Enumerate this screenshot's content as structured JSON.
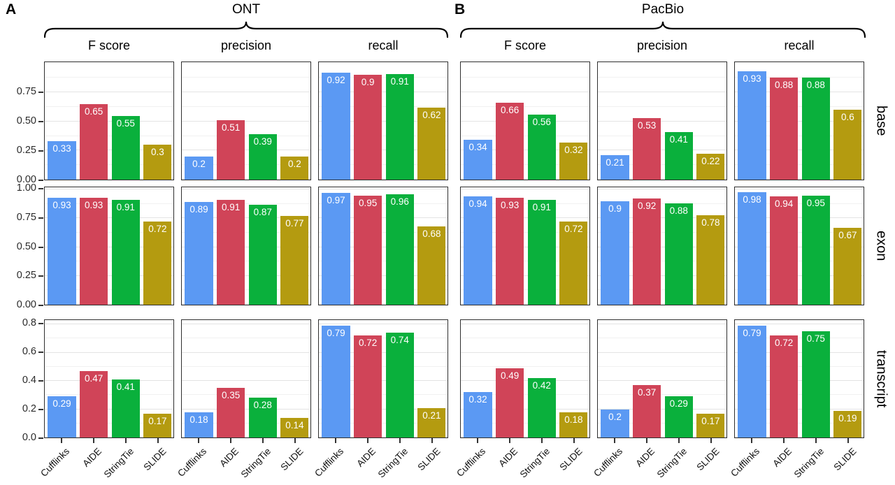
{
  "chart_data": {
    "type": "bar",
    "description": "Faceted grouped bar chart comparing transcript assembly tools",
    "categories": [
      "Cufflinks",
      "AIDE",
      "StringTie",
      "SLIDE"
    ],
    "bar_colors": [
      "#5B99F3",
      "#D04458",
      "#0AB03C",
      "#B49B10"
    ],
    "legend_position": "none",
    "grid": "on",
    "groups": [
      {
        "letter": "A",
        "title": "ONT"
      },
      {
        "letter": "B",
        "title": "PacBio"
      }
    ],
    "metrics": [
      "F score",
      "precision",
      "recall"
    ],
    "rows": [
      {
        "label": "base",
        "ymax": 1.01,
        "minors": [
          0.125,
          0.375,
          0.625,
          0.875
        ],
        "ticks": [
          {
            "v": 0,
            "label": "0.00"
          },
          {
            "v": 0.25,
            "label": "0.25"
          },
          {
            "v": 0.5,
            "label": "0.50"
          },
          {
            "v": 0.75,
            "label": "0.75"
          }
        ]
      },
      {
        "label": "exon",
        "ymax": 1.02,
        "minors": [
          0.125,
          0.375,
          0.625,
          0.875
        ],
        "ticks": [
          {
            "v": 0,
            "label": "0.00"
          },
          {
            "v": 0.25,
            "label": "0.25"
          },
          {
            "v": 0.5,
            "label": "0.50"
          },
          {
            "v": 0.75,
            "label": "0.75"
          },
          {
            "v": 1.0,
            "label": "1.00"
          }
        ]
      },
      {
        "label": "transcript",
        "ymax": 0.83,
        "minors": [
          0.1,
          0.3,
          0.5,
          0.7
        ],
        "ticks": [
          {
            "v": 0,
            "label": "0.0"
          },
          {
            "v": 0.2,
            "label": "0.2"
          },
          {
            "v": 0.4,
            "label": "0.4"
          },
          {
            "v": 0.6,
            "label": "0.6"
          },
          {
            "v": 0.8,
            "label": "0.8"
          }
        ]
      }
    ],
    "panels": [
      {
        "group": "ONT",
        "row": "base",
        "metric": "F score",
        "values": [
          0.33,
          0.65,
          0.55,
          0.3
        ],
        "labels": [
          "0.33",
          "0.65",
          "0.55",
          "0.3"
        ]
      },
      {
        "group": "ONT",
        "row": "base",
        "metric": "precision",
        "values": [
          0.2,
          0.51,
          0.39,
          0.2
        ],
        "labels": [
          "0.2",
          "0.51",
          "0.39",
          "0.2"
        ]
      },
      {
        "group": "ONT",
        "row": "base",
        "metric": "recall",
        "values": [
          0.92,
          0.9,
          0.91,
          0.62
        ],
        "labels": [
          "0.92",
          "0.9",
          "0.91",
          "0.62"
        ]
      },
      {
        "group": "ONT",
        "row": "exon",
        "metric": "F score",
        "values": [
          0.93,
          0.93,
          0.91,
          0.72
        ],
        "labels": [
          "0.93",
          "0.93",
          "0.91",
          "0.72"
        ]
      },
      {
        "group": "ONT",
        "row": "exon",
        "metric": "precision",
        "values": [
          0.89,
          0.91,
          0.87,
          0.77
        ],
        "labels": [
          "0.89",
          "0.91",
          "0.87",
          "0.77"
        ]
      },
      {
        "group": "ONT",
        "row": "exon",
        "metric": "recall",
        "values": [
          0.97,
          0.95,
          0.96,
          0.68
        ],
        "labels": [
          "0.97",
          "0.95",
          "0.96",
          "0.68"
        ]
      },
      {
        "group": "ONT",
        "row": "transcript",
        "metric": "F score",
        "values": [
          0.29,
          0.47,
          0.41,
          0.17
        ],
        "labels": [
          "0.29",
          "0.47",
          "0.41",
          "0.17"
        ]
      },
      {
        "group": "ONT",
        "row": "transcript",
        "metric": "precision",
        "values": [
          0.18,
          0.35,
          0.28,
          0.14
        ],
        "labels": [
          "0.18",
          "0.35",
          "0.28",
          "0.14"
        ]
      },
      {
        "group": "ONT",
        "row": "transcript",
        "metric": "recall",
        "values": [
          0.79,
          0.72,
          0.74,
          0.21
        ],
        "labels": [
          "0.79",
          "0.72",
          "0.74",
          "0.21"
        ]
      },
      {
        "group": "PacBio",
        "row": "base",
        "metric": "F score",
        "values": [
          0.34,
          0.66,
          0.56,
          0.32
        ],
        "labels": [
          "0.34",
          "0.66",
          "0.56",
          "0.32"
        ]
      },
      {
        "group": "PacBio",
        "row": "base",
        "metric": "precision",
        "values": [
          0.21,
          0.53,
          0.41,
          0.22
        ],
        "labels": [
          "0.21",
          "0.53",
          "0.41",
          "0.22"
        ]
      },
      {
        "group": "PacBio",
        "row": "base",
        "metric": "recall",
        "values": [
          0.93,
          0.88,
          0.88,
          0.6
        ],
        "labels": [
          "0.93",
          "0.88",
          "0.88",
          "0.6"
        ]
      },
      {
        "group": "PacBio",
        "row": "exon",
        "metric": "F score",
        "values": [
          0.94,
          0.93,
          0.91,
          0.72
        ],
        "labels": [
          "0.94",
          "0.93",
          "0.91",
          "0.72"
        ]
      },
      {
        "group": "PacBio",
        "row": "exon",
        "metric": "precision",
        "values": [
          0.9,
          0.92,
          0.88,
          0.78
        ],
        "labels": [
          "0.9",
          "0.92",
          "0.88",
          "0.78"
        ]
      },
      {
        "group": "PacBio",
        "row": "exon",
        "metric": "recall",
        "values": [
          0.98,
          0.94,
          0.95,
          0.67
        ],
        "labels": [
          "0.98",
          "0.94",
          "0.95",
          "0.67"
        ]
      },
      {
        "group": "PacBio",
        "row": "transcript",
        "metric": "F score",
        "values": [
          0.32,
          0.49,
          0.42,
          0.18
        ],
        "labels": [
          "0.32",
          "0.49",
          "0.42",
          "0.18"
        ]
      },
      {
        "group": "PacBio",
        "row": "transcript",
        "metric": "precision",
        "values": [
          0.2,
          0.37,
          0.29,
          0.17
        ],
        "labels": [
          "0.2",
          "0.37",
          "0.29",
          "0.17"
        ]
      },
      {
        "group": "PacBio",
        "row": "transcript",
        "metric": "recall",
        "values": [
          0.79,
          0.72,
          0.75,
          0.19
        ],
        "labels": [
          "0.79",
          "0.72",
          "0.75",
          "0.19"
        ]
      }
    ]
  }
}
